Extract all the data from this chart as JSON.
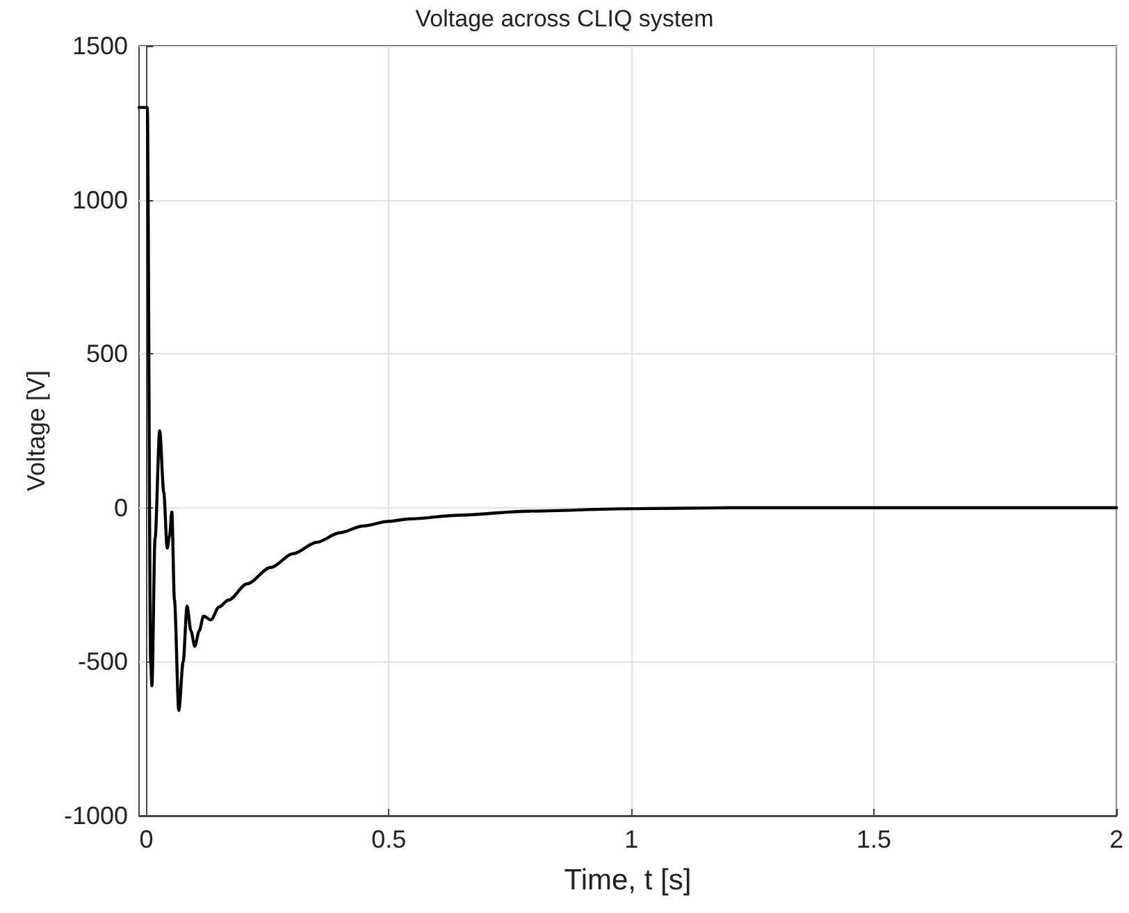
{
  "chart_data": {
    "type": "line",
    "title": "Voltage across CLIQ system",
    "xlabel": "Time, t [s]",
    "ylabel": "Voltage [V]",
    "xlim": [
      -0.015,
      2
    ],
    "xticks": [
      0,
      0.5,
      1,
      1.5,
      2
    ],
    "ylim": [
      -1000,
      1500
    ],
    "yticks": [
      -1000,
      -500,
      0,
      500,
      1000,
      1500
    ],
    "grid": true,
    "marker": "none",
    "line_style": "solid",
    "series": [
      {
        "color": "#000000",
        "x": [
          -0.015,
          0.002,
          0.009,
          0.0115,
          0.018,
          0.0276,
          0.036,
          0.043,
          0.048,
          0.0526,
          0.058,
          0.067,
          0.076,
          0.084,
          0.092,
          0.1,
          0.109,
          0.118,
          0.133,
          0.15,
          0.169,
          0.208,
          0.256,
          0.303,
          0.351,
          0.399,
          0.447,
          0.5,
          0.543,
          0.644,
          0.787,
          1.0,
          1.2,
          1.5,
          2.0
        ],
        "values": [
          1300,
          1300,
          -500,
          -578,
          -100,
          250,
          50,
          -131,
          -90,
          -14,
          -300,
          -658,
          -500,
          -319,
          -400,
          -450,
          -400,
          -352,
          -364,
          -322,
          -300,
          -247,
          -194,
          -149,
          -112,
          -81,
          -59,
          -44,
          -36,
          -24,
          -11,
          -3,
          0,
          0,
          0
        ]
      }
    ]
  }
}
